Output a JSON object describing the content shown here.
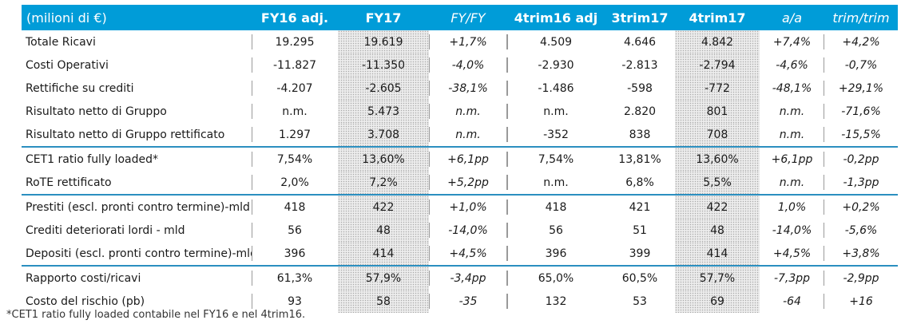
{
  "table": {
    "header": {
      "label": "(milioni di €)",
      "cols": [
        "FY16 adj.",
        "FY17",
        "FY/FY",
        "4trim16 adj",
        "3trim17",
        "4trim17",
        "a/a",
        "trim/trim"
      ]
    },
    "rows": [
      {
        "label": "Totale Ricavi",
        "values": [
          "19.295",
          "19.619",
          "+1,7%",
          "4.509",
          "4.646",
          "4.842",
          "+7,4%",
          "+4,2%"
        ]
      },
      {
        "label": "Costi Operativi",
        "values": [
          "-11.827",
          "-11.350",
          "-4,0%",
          "-2.930",
          "-2.813",
          "-2.794",
          "-4,6%",
          "-0,7%"
        ]
      },
      {
        "label": "Rettifiche su crediti",
        "values": [
          "-4.207",
          "-2.605",
          "-38,1%",
          "-1.486",
          "-598",
          "-772",
          "-48,1%",
          "+29,1%"
        ]
      },
      {
        "label": "Risultato netto di Gruppo",
        "values": [
          "n.m.",
          "5.473",
          "n.m.",
          "n.m.",
          "2.820",
          "801",
          "n.m.",
          "-71,6%"
        ]
      },
      {
        "label": "Risultato netto di Gruppo rettificato",
        "values": [
          "1.297",
          "3.708",
          "n.m.",
          "-352",
          "838",
          "708",
          "n.m.",
          "-15,5%"
        ]
      },
      {
        "label": "CET1 ratio fully loaded*",
        "values": [
          "7,54%",
          "13,60%",
          "+6,1pp",
          "7,54%",
          "13,81%",
          "13,60%",
          "+6,1pp",
          "-0,2pp"
        ]
      },
      {
        "label": "RoTE rettificato",
        "values": [
          "2,0%",
          "7,2%",
          "+5,2pp",
          "n.m.",
          "6,8%",
          "5,5%",
          "n.m.",
          "-1,3pp"
        ]
      },
      {
        "label": "Prestiti (escl. pronti contro termine)-mld",
        "values": [
          "418",
          "422",
          "+1,0%",
          "418",
          "421",
          "422",
          "1,0%",
          "+0,2%"
        ]
      },
      {
        "label": "Crediti deteriorati lordi - mld",
        "values": [
          "56",
          "48",
          "-14,0%",
          "56",
          "51",
          "48",
          "-14,0%",
          "-5,6%"
        ]
      },
      {
        "label": "Depositi (escl. pronti contro termine)-mld",
        "values": [
          "396",
          "414",
          "+4,5%",
          "396",
          "399",
          "414",
          "+4,5%",
          "+3,8%"
        ]
      },
      {
        "label": "Rapporto costi/ricavi",
        "values": [
          "61,3%",
          "57,9%",
          "-3,4pp",
          "65,0%",
          "60,5%",
          "57,7%",
          "-7,3pp",
          "-2,9pp"
        ]
      },
      {
        "label": "Costo del rischio (pb)",
        "values": [
          "93",
          "58",
          "-35",
          "132",
          "53",
          "69",
          "-64",
          "+16"
        ]
      }
    ]
  },
  "footnote": "*CET1 ratio fully loaded contabile nel FY16 e nel 4trim16.",
  "colors": {
    "header_bg": "#009cd8",
    "header_text": "#ffffff",
    "separator": "#2b8fc0",
    "highlight_dots": "#a9a9a9"
  }
}
